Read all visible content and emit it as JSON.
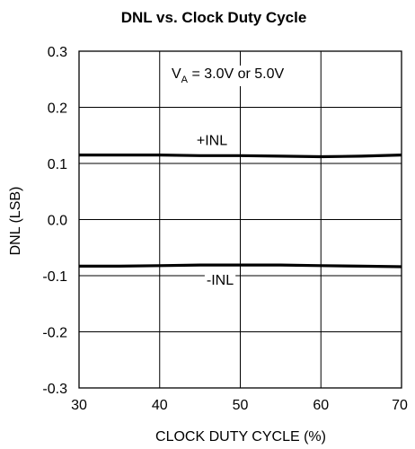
{
  "chart_data": {
    "type": "line",
    "title": "DNL vs. Clock Duty Cycle",
    "xlabel": "CLOCK DUTY CYCLE (%)",
    "ylabel": "DNL (LSB)",
    "xlim": [
      30,
      70
    ],
    "ylim": [
      -0.3,
      0.3
    ],
    "xticks": [
      "30",
      "40",
      "50",
      "60",
      "70"
    ],
    "yticks": [
      "0.3",
      "0.2",
      "0.1",
      "0.0",
      "-0.1",
      "-0.2",
      "-0.3"
    ],
    "grid": true,
    "annotation": {
      "prefix": "V",
      "subscript": "A",
      "suffix": " = 3.0V or 5.0V"
    },
    "series": [
      {
        "name": "+INL",
        "x": [
          30,
          35,
          40,
          45,
          50,
          55,
          60,
          65,
          70
        ],
        "y": [
          0.115,
          0.115,
          0.115,
          0.114,
          0.114,
          0.113,
          0.112,
          0.113,
          0.115
        ]
      },
      {
        "name": "-INL",
        "x": [
          30,
          35,
          40,
          45,
          50,
          55,
          60,
          65,
          70
        ],
        "y": [
          -0.083,
          -0.083,
          -0.082,
          -0.081,
          -0.081,
          -0.081,
          -0.082,
          -0.083,
          -0.084
        ]
      }
    ]
  }
}
